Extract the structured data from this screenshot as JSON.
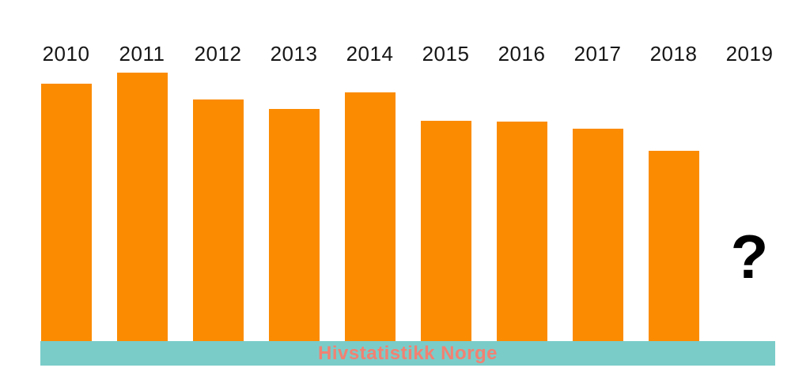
{
  "chart_data": {
    "type": "bar",
    "title": "Hivstatistikk Norge",
    "categories": [
      "2010",
      "2011",
      "2012",
      "2013",
      "2014",
      "2015",
      "2016",
      "2017",
      "2018",
      "2019"
    ],
    "values": [
      258,
      269,
      242,
      233,
      249,
      221,
      220,
      213,
      191,
      null
    ],
    "missing_value_marker": "?",
    "xlabel": "",
    "ylabel": "",
    "ylim": [
      0,
      342
    ],
    "grid": false,
    "legend": false,
    "bar_color": "#FB8B00",
    "label_color": "#161616",
    "missing_marker_color": "#000000"
  },
  "footer": {
    "title": "Hivstatistikk Norge",
    "background_color": "#7ACCC9",
    "text_color": "#F28172"
  }
}
